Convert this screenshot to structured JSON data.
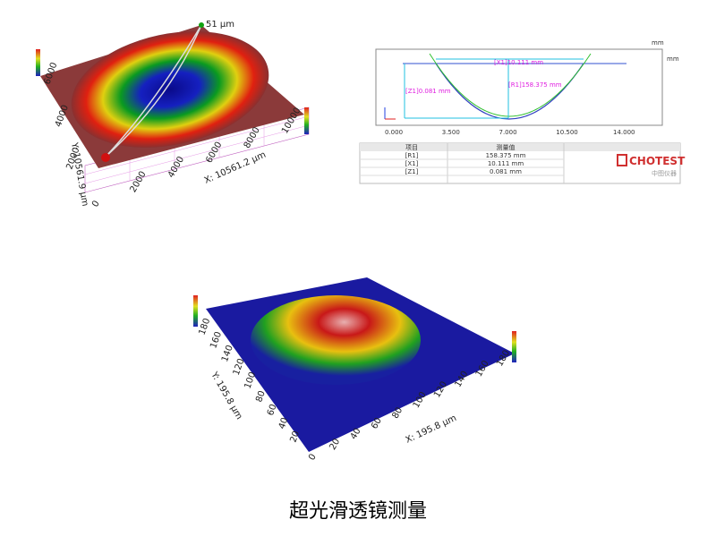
{
  "top_left_plot": {
    "scale_top": "51 µm",
    "x_label": "X: 10561.2 µm",
    "y_label": "Y: 10561.9 µm",
    "x_ticks": [
      "0",
      "2000",
      "4000",
      "6000",
      "8000",
      "10000"
    ],
    "y_ticks": [
      "2000",
      "4000",
      "6000"
    ]
  },
  "profile": {
    "unit_top": "mm",
    "unit_right": "mm",
    "x1": "[X1]10.111 mm",
    "r1": "[R1]158.375 mm",
    "z1": "[Z1]0.081 mm",
    "x_ticks": [
      "0.000",
      "3.500",
      "7.000",
      "10.500",
      "14.000"
    ],
    "table": {
      "header": [
        "项目",
        "测量值"
      ],
      "rows": [
        [
          "[R1]",
          "158.375 mm"
        ],
        [
          "[X1]",
          "10.111 mm"
        ],
        [
          "[Z1]",
          "0.081 mm"
        ]
      ]
    },
    "logo": "CHOTEST",
    "logo_sub": "中图仪器"
  },
  "bottom_plot": {
    "x_label": "X: 195.8 µm",
    "y_label": "Y: 195.8 µm",
    "x_ticks": [
      "0",
      "20",
      "40",
      "60",
      "80",
      "100",
      "120",
      "140",
      "160",
      "180"
    ],
    "y_ticks": [
      "20",
      "40",
      "60",
      "80",
      "100",
      "120",
      "140",
      "160",
      "180"
    ]
  },
  "caption": "超光滑透镜测量"
}
